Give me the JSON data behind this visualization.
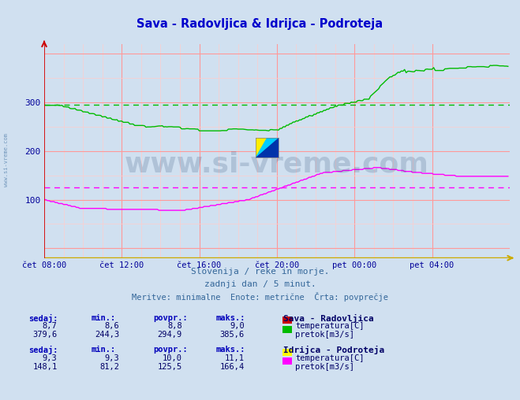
{
  "title": "Sava - Radovljica & Idrijca - Podroteja",
  "title_color": "#0000cc",
  "bg_color": "#d0e0f0",
  "plot_bg_color": "#d0e0f0",
  "grid_color_major": "#ff9999",
  "grid_color_minor": "#ffcccc",
  "xlabel_color": "#000099",
  "ylabel_color": "#000099",
  "x_ticks": [
    "čet 08:00",
    "čet 12:00",
    "čet 16:00",
    "čet 20:00",
    "pet 00:00",
    "pet 04:00"
  ],
  "x_tick_positions": [
    0,
    48,
    96,
    144,
    192,
    240
  ],
  "y_ticks": [
    100,
    200,
    300
  ],
  "ylim": [
    -20,
    420
  ],
  "xlim": [
    0,
    288
  ],
  "subtitle1": "Slovenija / reke in morje.",
  "subtitle2": "zadnji dan / 5 minut.",
  "subtitle3": "Meritve: minimalne  Enote: metrične  Črta: povprečje",
  "subtitle_color": "#336699",
  "watermark_text": "www.si-vreme.com",
  "watermark_color": "#1a3a6a",
  "watermark_alpha": 0.18,
  "legend_title_sava": "Sava - Radovljica",
  "legend_title_idrijca": "Idrijca - Podroteja",
  "table_header": [
    "sedaj:",
    "min.:",
    "povpr.:",
    "maks.:"
  ],
  "sava_temp": [
    8.7,
    8.6,
    8.8,
    9.0
  ],
  "sava_pretok": [
    379.6,
    244.3,
    294.9,
    385.6
  ],
  "idrijca_temp": [
    9.3,
    9.3,
    10.0,
    11.1
  ],
  "idrijca_pretok": [
    148.1,
    81.2,
    125.5,
    166.4
  ],
  "sava_temp_color": "#cc0000",
  "sava_pretok_color": "#00bb00",
  "idrijca_temp_color": "#ffff00",
  "idrijca_pretok_color": "#ff00ff",
  "sava_pretok_avg": 294.9,
  "idrijca_pretok_avg": 125.5,
  "axis_color_y": "#cc0000",
  "axis_color_x": "#ccaa00",
  "table_color": "#000066",
  "header_color": "#0000bb"
}
